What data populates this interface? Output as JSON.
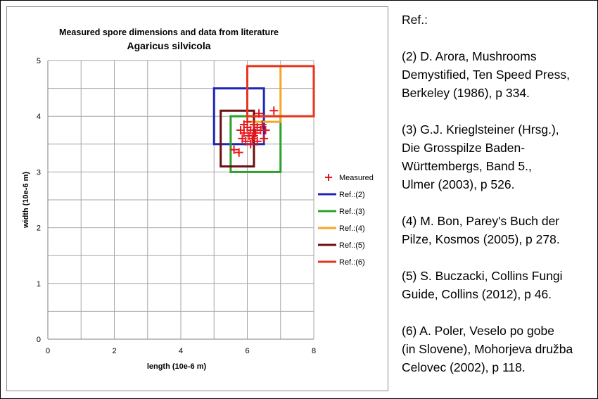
{
  "chart_data": {
    "type": "scatter",
    "title": "Measured spore dimensions and data from literature",
    "subtitle": "Agaricus silvicola",
    "xlabel": "length (10e-6 m)",
    "ylabel": "width (10e-6 m)",
    "xlim": [
      0,
      8
    ],
    "ylim": [
      0,
      5
    ],
    "x_ticks": [
      "0",
      "2",
      "4",
      "6",
      "8"
    ],
    "y_ticks": [
      "0",
      "1",
      "2",
      "3",
      "4",
      "5"
    ],
    "grid": true,
    "legend_position": "right",
    "series": [
      {
        "name": "Measured",
        "marker": "plus",
        "color": "#e8161b",
        "points": [
          [
            5.6,
            3.4
          ],
          [
            5.75,
            3.35
          ],
          [
            5.8,
            3.75
          ],
          [
            5.85,
            3.6
          ],
          [
            5.9,
            3.7
          ],
          [
            5.95,
            3.55
          ],
          [
            6.0,
            3.8
          ],
          [
            6.05,
            3.65
          ],
          [
            6.1,
            3.75
          ],
          [
            6.1,
            3.5
          ],
          [
            6.15,
            3.6
          ],
          [
            6.2,
            3.85
          ],
          [
            6.25,
            3.7
          ],
          [
            6.3,
            3.8
          ],
          [
            6.3,
            3.55
          ],
          [
            6.35,
            4.05
          ],
          [
            6.4,
            3.75
          ],
          [
            6.45,
            3.85
          ],
          [
            6.5,
            3.6
          ],
          [
            6.55,
            3.75
          ],
          [
            6.8,
            4.1
          ],
          [
            6.0,
            3.9
          ],
          [
            6.2,
            3.65
          ],
          [
            5.9,
            3.85
          ]
        ]
      },
      {
        "name": "Ref.:(2)",
        "marker": "rect",
        "color": "#1f27b4",
        "x_range": [
          5.0,
          6.5
        ],
        "y_range": [
          3.5,
          4.5
        ]
      },
      {
        "name": "Ref.:(3)",
        "marker": "rect",
        "color": "#2ca02c",
        "x_range": [
          5.5,
          7.0
        ],
        "y_range": [
          3.0,
          4.0
        ]
      },
      {
        "name": "Ref.:(4)",
        "marker": "rect",
        "color": "#f5a623",
        "x_range": [
          6.0,
          7.0
        ],
        "y_range": [
          3.9,
          4.9
        ]
      },
      {
        "name": "Ref.:(5)",
        "marker": "rect",
        "color": "#6b0f0f",
        "x_range": [
          5.2,
          6.2
        ],
        "y_range": [
          3.1,
          4.1
        ]
      },
      {
        "name": "Ref.:(6)",
        "marker": "rect",
        "color": "#e8341c",
        "x_range": [
          6.0,
          8.0
        ],
        "y_range": [
          4.0,
          4.9
        ]
      }
    ]
  },
  "references": {
    "title": "Ref.:",
    "items": [
      "(2) D. Arora, Mushrooms\nDemystified, Ten Speed Press,\nBerkeley (1986), p 334.",
      "(3) G.J. Krieglsteiner (Hrsg.),\nDie Grosspilze Baden-\nWürttembergs, Band 5.,\nUlmer (2003), p 526.",
      "(4) M. Bon, Parey's Buch der\nPilze, Kosmos (2005), p 278.",
      "(5) S. Buczacki, Collins Fungi\nGuide, Collins (2012), p 46.",
      "(6) A. Poler, Veselo po gobe\n(in Slovene), Mohorjeva družba\nCelovec (2002), p 118."
    ]
  }
}
